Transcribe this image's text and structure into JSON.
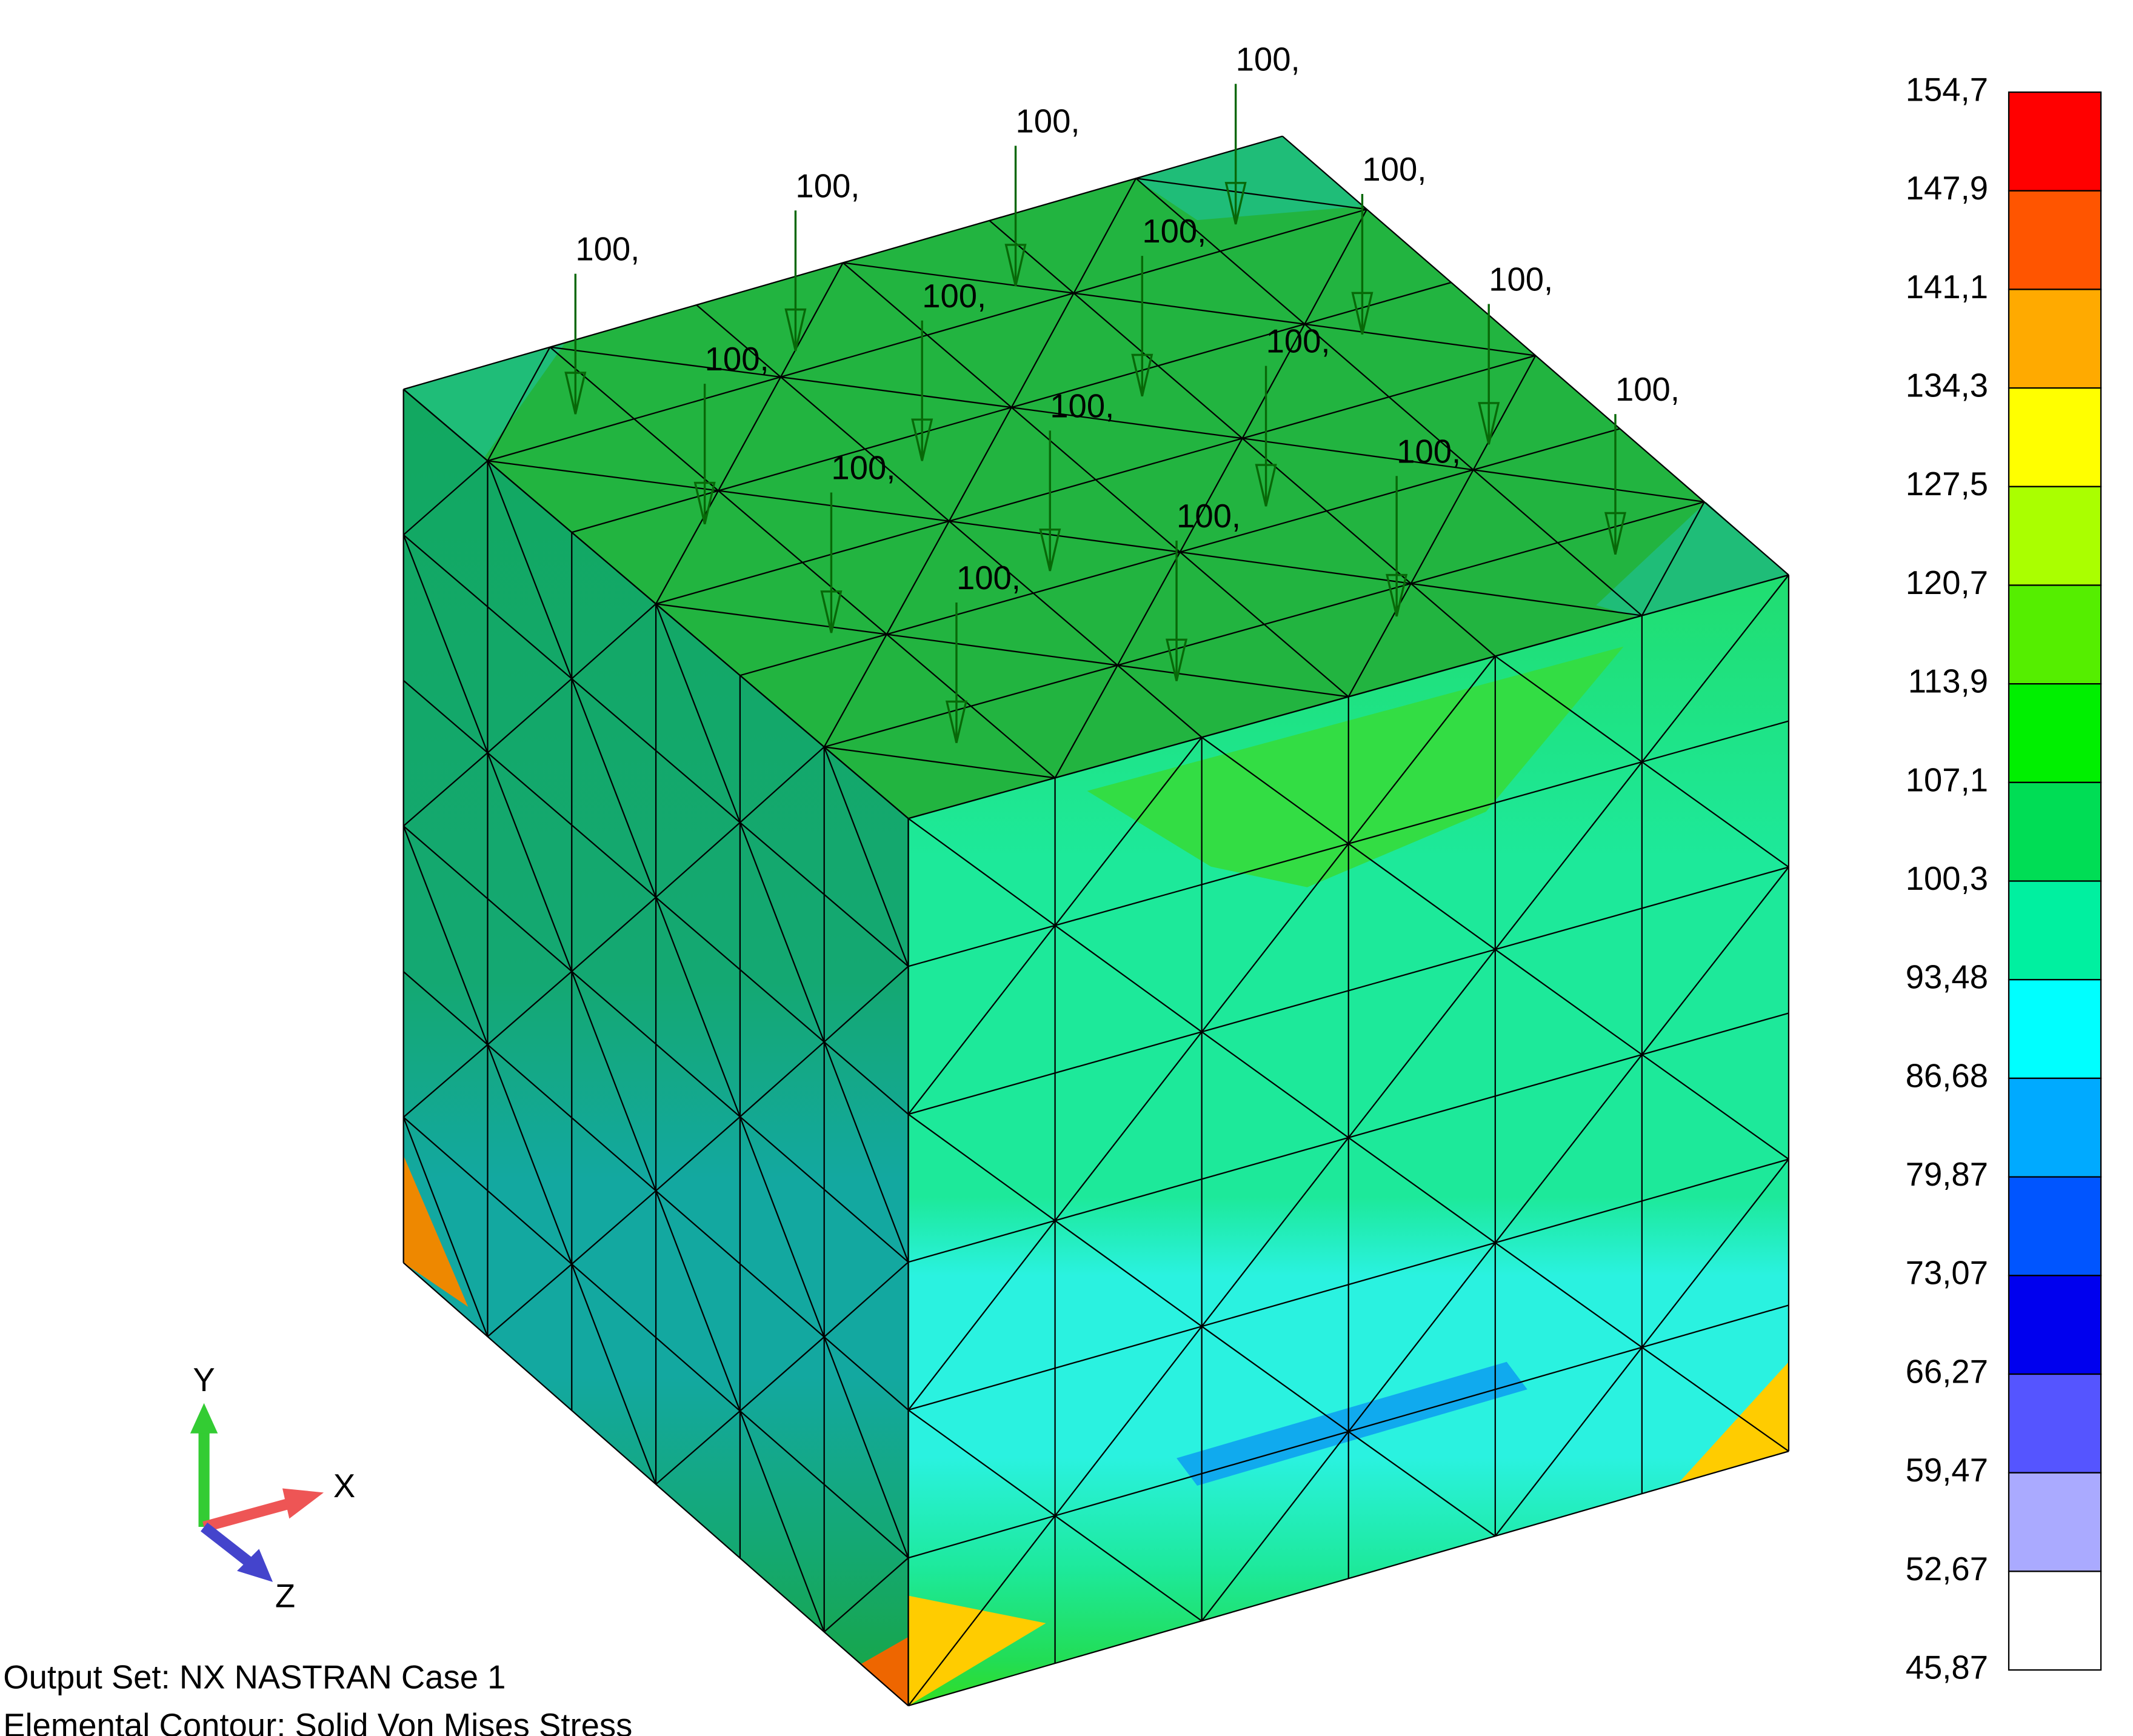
{
  "legend": {
    "labels": [
      "154,7",
      "147,9",
      "141,1",
      "134,3",
      "127,5",
      "120,7",
      "113,9",
      "107,1",
      "100,3",
      "93,48",
      "86,68",
      "79,87",
      "73,07",
      "66,27",
      "59,47",
      "52,67",
      "45,87"
    ],
    "colors": [
      "#ff0000",
      "#ff5500",
      "#ffaa00",
      "#ffff00",
      "#aaff00",
      "#55ee00",
      "#00f000",
      "#00dd55",
      "#00f0a0",
      "#00ffff",
      "#00aaff",
      "#0055ff",
      "#0000ee",
      "#5555ff",
      "#aaaaff",
      "#ffffff"
    ]
  },
  "loads": [
    "100,",
    "100,",
    "100,",
    "100,",
    "100,",
    "100,",
    "100,",
    "100,",
    "100,",
    "100,",
    "100,",
    "100,",
    "100,",
    "100,",
    "100,",
    "100,"
  ],
  "triad": {
    "x": "X",
    "y": "Y",
    "z": "Z"
  },
  "info": [
    "Output Set: NX NASTRAN Case 1",
    "Elemental Contour: Solid Von Mises Stress"
  ]
}
